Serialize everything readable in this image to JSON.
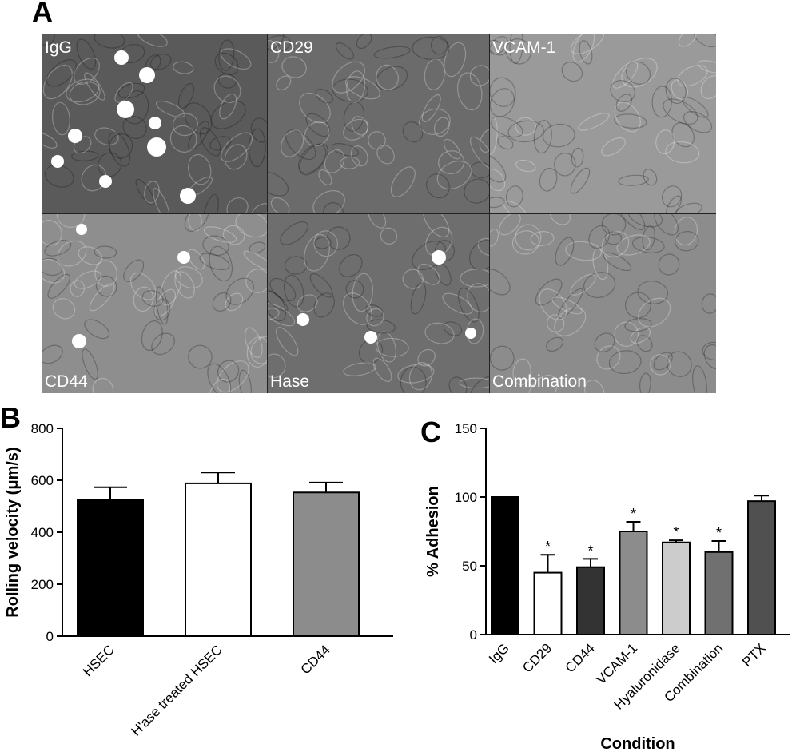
{
  "panels": {
    "a": {
      "letter": "A"
    },
    "b": {
      "letter": "B"
    },
    "c": {
      "letter": "C"
    }
  },
  "micrographs": [
    {
      "label": "IgG",
      "tone": "#5a5a5a",
      "spots": 9
    },
    {
      "label": "CD29",
      "tone": "#6b6b6b",
      "spots": 0
    },
    {
      "label": "VCAM-1",
      "tone": "#9a9a9a",
      "spots": 0
    },
    {
      "label": "CD44",
      "tone": "#8e8e8e",
      "spots": 3
    },
    {
      "label": "Hase",
      "tone": "#6e6e6e",
      "spots": 4
    },
    {
      "label": "Combination",
      "tone": "#8c8c8c",
      "spots": 0
    }
  ],
  "chart_data": [
    {
      "type": "bar",
      "panel": "B",
      "ylabel": "Rolling velocity (μm/s)",
      "xlabel": "",
      "ylim": [
        0,
        800
      ],
      "yticks": [
        "0",
        "200",
        "400",
        "600",
        "800"
      ],
      "categories": [
        "HSEC",
        "H'ase treated HSEC",
        "CD44"
      ],
      "values": [
        525,
        588,
        553
      ],
      "errors": [
        48,
        42,
        38
      ],
      "colors": [
        "#000000",
        "#ffffff",
        "#8c8c8c"
      ]
    },
    {
      "type": "bar",
      "panel": "C",
      "ylabel": "% Adhesion",
      "xlabel": "Condition",
      "ylim": [
        0,
        150
      ],
      "yticks": [
        "0",
        "50",
        "100",
        "150"
      ],
      "categories": [
        "IgG",
        "CD29",
        "CD44",
        "VCAM-1",
        "Hyaluronidase",
        "Combination",
        "PTX"
      ],
      "values": [
        100,
        45,
        49,
        75,
        67,
        60,
        97
      ],
      "errors": [
        0,
        13,
        6,
        7,
        1.5,
        8,
        4
      ],
      "significance": [
        "",
        "*",
        "*",
        "*",
        "*",
        "*",
        ""
      ],
      "colors": [
        "#000000",
        "#ffffff",
        "#333333",
        "#8c8c8c",
        "#cccccc",
        "#707070",
        "#505050"
      ]
    }
  ]
}
